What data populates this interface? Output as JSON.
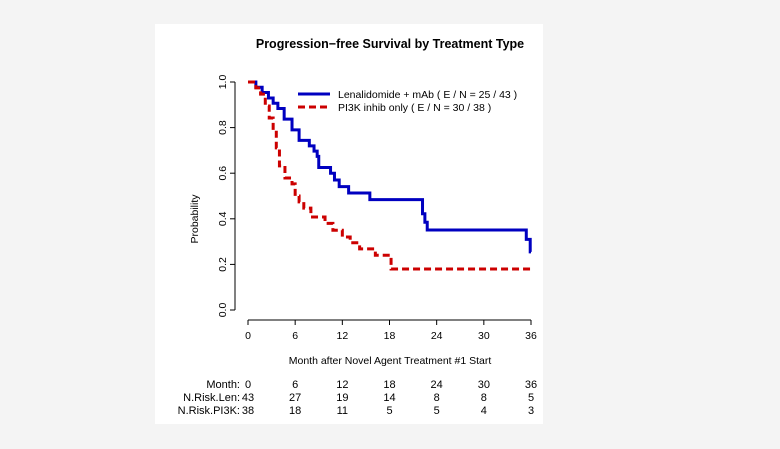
{
  "chart_data": {
    "type": "line",
    "title": "Progression−free Survival by Treatment Type",
    "xlabel": "Month after Novel Agent Treatment #1 Start",
    "ylabel": "Probability",
    "xlim": [
      0,
      36
    ],
    "ylim": [
      0,
      1
    ],
    "x_ticks": [
      "0",
      "6",
      "12",
      "18",
      "24",
      "30",
      "36"
    ],
    "y_ticks": [
      "0.0",
      "0.2",
      "0.4",
      "0.6",
      "0.8",
      "1.0"
    ],
    "grid": false,
    "legend_position": "top-right",
    "series": [
      {
        "name": "Lenalidomide + mAb",
        "legend_label": "Lenalidomide + mAb  ( E / N = 25 / 43 )",
        "color": "#0000c0",
        "style": "solid",
        "step_points": [
          [
            0,
            1.0
          ],
          [
            1,
            0.977
          ],
          [
            1.8,
            0.954
          ],
          [
            2.6,
            0.93
          ],
          [
            3.2,
            0.907
          ],
          [
            3.8,
            0.884
          ],
          [
            4.6,
            0.837
          ],
          [
            5.6,
            0.79
          ],
          [
            6.5,
            0.744
          ],
          [
            7.8,
            0.72
          ],
          [
            8.4,
            0.697
          ],
          [
            8.8,
            0.674
          ],
          [
            9.0,
            0.625
          ],
          [
            10.5,
            0.6
          ],
          [
            11.0,
            0.57
          ],
          [
            11.6,
            0.541
          ],
          [
            12.8,
            0.513
          ],
          [
            15.5,
            0.484
          ],
          [
            22.2,
            0.422
          ],
          [
            22.5,
            0.385
          ],
          [
            22.8,
            0.351
          ],
          [
            35.4,
            0.31
          ],
          [
            35.9,
            0.255
          ]
        ],
        "end_x": 36
      },
      {
        "name": "PI3K inhib only",
        "legend_label": "PI3K inhib only  ( E / N = 30 / 38 )",
        "color": "#cc0000",
        "style": "dashed",
        "step_points": [
          [
            0,
            1.0
          ],
          [
            1,
            0.974
          ],
          [
            1.6,
            0.947
          ],
          [
            2.2,
            0.895
          ],
          [
            2.7,
            0.842
          ],
          [
            3.2,
            0.789
          ],
          [
            3.6,
            0.711
          ],
          [
            4.0,
            0.632
          ],
          [
            4.7,
            0.579
          ],
          [
            5.6,
            0.553
          ],
          [
            6.0,
            0.5
          ],
          [
            6.5,
            0.474
          ],
          [
            7.1,
            0.447
          ],
          [
            8.0,
            0.408
          ],
          [
            9.8,
            0.38
          ],
          [
            10.8,
            0.35
          ],
          [
            12.0,
            0.32
          ],
          [
            13.0,
            0.295
          ],
          [
            14.2,
            0.268
          ],
          [
            16.2,
            0.24
          ],
          [
            18.2,
            0.18
          ]
        ],
        "end_x": 36
      }
    ]
  },
  "risk_table": {
    "header_label": "Month:",
    "months": [
      "0",
      "6",
      "12",
      "18",
      "24",
      "30",
      "36"
    ],
    "rows": [
      {
        "label": "N.Risk.Len:",
        "values": [
          "43",
          "27",
          "19",
          "14",
          "8",
          "8",
          "5"
        ]
      },
      {
        "label": "N.Risk.PI3K:",
        "values": [
          "38",
          "18",
          "11",
          "5",
          "5",
          "4",
          "3"
        ]
      }
    ]
  }
}
